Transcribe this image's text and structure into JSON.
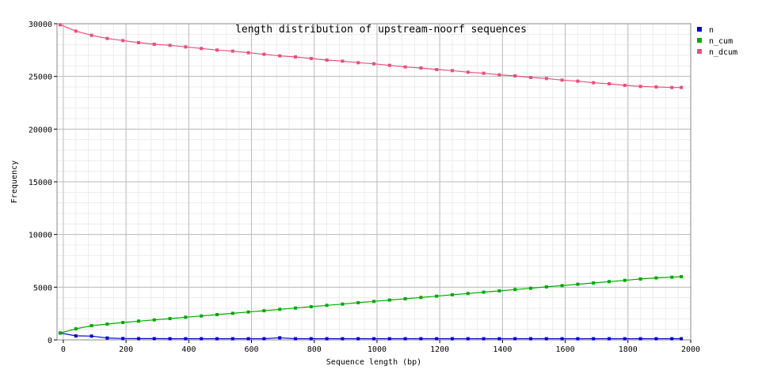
{
  "chart_data": {
    "type": "line",
    "title": "length distribution of upstream-noorf sequences",
    "xlabel": "Sequence length (bp)",
    "ylabel": "Frequency",
    "xlim": [
      -20,
      2000
    ],
    "ylim": [
      0,
      30000
    ],
    "xticks": [
      0,
      200,
      400,
      600,
      800,
      1000,
      1200,
      1400,
      1600,
      1800,
      2000
    ],
    "yticks": [
      0,
      5000,
      10000,
      15000,
      20000,
      25000,
      30000
    ],
    "grid": true,
    "minor_grid": true,
    "legend_position": "right",
    "x": [
      -10,
      40,
      90,
      140,
      190,
      240,
      290,
      340,
      390,
      440,
      490,
      540,
      590,
      640,
      690,
      740,
      790,
      840,
      890,
      940,
      990,
      1040,
      1090,
      1140,
      1190,
      1240,
      1290,
      1340,
      1390,
      1440,
      1490,
      1540,
      1590,
      1640,
      1690,
      1740,
      1790,
      1840,
      1890,
      1940,
      1970
    ],
    "series": [
      {
        "name": "n",
        "color": "#0000cc",
        "values": [
          650,
          380,
          360,
          180,
          130,
          120,
          120,
          110,
          110,
          110,
          110,
          110,
          110,
          110,
          200,
          110,
          110,
          110,
          110,
          110,
          110,
          110,
          110,
          110,
          110,
          110,
          110,
          110,
          110,
          110,
          110,
          110,
          110,
          110,
          110,
          110,
          110,
          110,
          110,
          110,
          110
        ]
      },
      {
        "name": "n_cum",
        "color": "#00aa00",
        "values": [
          650,
          1050,
          1350,
          1500,
          1650,
          1780,
          1900,
          2020,
          2150,
          2270,
          2400,
          2520,
          2650,
          2770,
          2900,
          3020,
          3150,
          3280,
          3400,
          3530,
          3650,
          3780,
          3900,
          4030,
          4150,
          4280,
          4400,
          4530,
          4650,
          4780,
          4900,
          5030,
          5150,
          5280,
          5400,
          5530,
          5650,
          5780,
          5880,
          5950,
          6000
        ]
      },
      {
        "name": "n_dcum",
        "color": "#e8507a",
        "values": [
          29900,
          29300,
          28900,
          28600,
          28400,
          28200,
          28050,
          27950,
          27800,
          27650,
          27500,
          27400,
          27250,
          27100,
          26950,
          26850,
          26700,
          26550,
          26450,
          26300,
          26200,
          26050,
          25900,
          25800,
          25650,
          25550,
          25400,
          25300,
          25150,
          25050,
          24900,
          24800,
          24650,
          24550,
          24400,
          24300,
          24150,
          24050,
          24000,
          23950,
          23950
        ]
      }
    ]
  }
}
